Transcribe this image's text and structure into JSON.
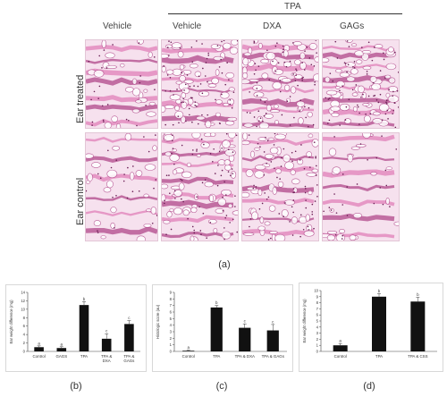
{
  "figure": {
    "tpa_header": "TPA",
    "col_headers": [
      "Vehicle",
      "Vehicle",
      "DXA",
      "GAGs"
    ],
    "row_labels": [
      "Ear treated",
      "Ear control"
    ],
    "label_a": "(a)",
    "label_b": "(b)",
    "label_c": "(c)",
    "label_d": "(d)",
    "colors": {
      "stain_pink": "#e07fb8",
      "stain_purple": "#b0478a",
      "bg_pink": "#f6e1ee",
      "bar": "#111111"
    }
  },
  "chart_data": [
    {
      "type": "bar",
      "ylabel": "Ear weight difference (mg)",
      "categories": [
        "Control",
        "GAGS",
        "TPA",
        "TPA & DXA",
        "TPA & GAGs"
      ],
      "tick_lines": [
        [
          "Control"
        ],
        [
          "GAGS"
        ],
        [
          "TPA"
        ],
        [
          "TPA &",
          "DXA"
        ],
        [
          "TPA &",
          "GAGs"
        ]
      ],
      "values": [
        1.0,
        0.8,
        11.0,
        3.0,
        6.5
      ],
      "errors": [
        0.3,
        0.3,
        0.8,
        1.2,
        0.8
      ],
      "letters": [
        "a",
        "a",
        "b",
        "c",
        "c"
      ],
      "ylim": [
        0,
        14
      ],
      "yticks": [
        "0",
        "2",
        "4",
        "6",
        "8",
        "10",
        "12",
        "14"
      ]
    },
    {
      "type": "bar",
      "ylabel": "Histologic score (au)",
      "categories": [
        "Control",
        "TPA",
        "TPA & DXA",
        "TPA & GAGs"
      ],
      "tick_lines": [
        [
          "Control"
        ],
        [
          "TPA"
        ],
        [
          "TPA & DXA"
        ],
        [
          "TPA & GAGs"
        ]
      ],
      "values": [
        0.1,
        6.7,
        3.6,
        3.2
      ],
      "errors": [
        0.1,
        0.3,
        0.6,
        0.9
      ],
      "letters": [
        "a",
        "b",
        "c",
        "c"
      ],
      "ylim": [
        0,
        9
      ],
      "yticks": [
        "0",
        "1",
        "2",
        "3",
        "4",
        "5",
        "6",
        "7",
        "8",
        "9"
      ]
    },
    {
      "type": "bar",
      "ylabel": "Ear weight difference (mg)",
      "categories": [
        "Control",
        "TPA",
        "TPA & CSS"
      ],
      "tick_lines": [
        [
          "Control"
        ],
        [
          "TPA"
        ],
        [
          "TPA & CSS"
        ]
      ],
      "values": [
        1.0,
        9.0,
        8.2
      ],
      "errors": [
        0.3,
        0.5,
        0.7
      ],
      "letters": [
        "a",
        "b",
        "b"
      ],
      "ylim": [
        0,
        10
      ],
      "yticks": [
        "0",
        "1",
        "2",
        "3",
        "4",
        "5",
        "6",
        "7",
        "8",
        "9",
        "10"
      ]
    }
  ]
}
